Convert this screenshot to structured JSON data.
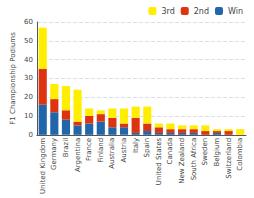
{
  "chart_data": {
    "type": "bar",
    "categories": [
      "United Kingdom",
      "Germany",
      "Brazil",
      "Argentina",
      "France",
      "Finland",
      "Australia",
      "Austria",
      "Italy",
      "Spain",
      "United States",
      "Canada",
      "New Zealand",
      "South Africa",
      "Sweden",
      "Belgium",
      "Switzerland",
      "Colombia"
    ],
    "series": [
      {
        "name": "Win",
        "color": "#2266aa",
        "values": [
          16,
          12,
          8,
          5,
          6,
          7,
          4,
          4,
          1,
          2,
          1,
          1,
          1,
          1,
          0,
          1,
          0,
          0
        ]
      },
      {
        "name": "2nd",
        "color": "#dd3311",
        "values": [
          19,
          7,
          5,
          2,
          4,
          4,
          5,
          2,
          8,
          4,
          3,
          2,
          2,
          2,
          2,
          1,
          2,
          0
        ]
      },
      {
        "name": "3rd",
        "color": "#ffee00",
        "values": [
          22,
          8,
          13,
          17,
          4,
          2,
          5,
          8,
          6,
          9,
          2,
          3,
          2,
          2,
          3,
          1,
          1,
          3
        ]
      }
    ],
    "ylabel": "F1 Championship Podiums",
    "ylim": [
      0,
      60
    ],
    "yticks": [
      0,
      10,
      20,
      30,
      40,
      50,
      60
    ],
    "stacked": true,
    "grid": true,
    "legend": "upper right"
  }
}
